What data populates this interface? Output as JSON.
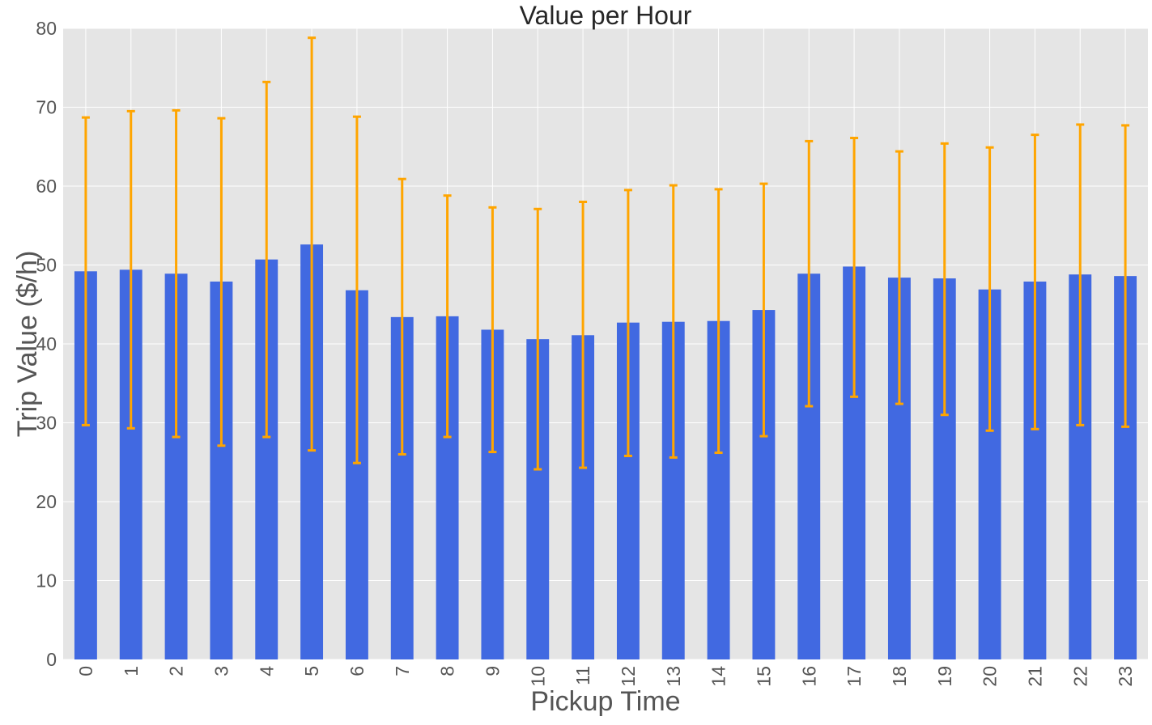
{
  "chart_data": {
    "type": "bar",
    "title": "Value per Hour",
    "xlabel": "Pickup Time",
    "ylabel": "Trip Value ($/h)",
    "ylim": [
      0,
      80
    ],
    "yticks": [
      0,
      10,
      20,
      30,
      40,
      50,
      60,
      70,
      80
    ],
    "grid": true,
    "categories": [
      "0",
      "1",
      "2",
      "3",
      "4",
      "5",
      "6",
      "7",
      "8",
      "9",
      "10",
      "11",
      "12",
      "13",
      "14",
      "15",
      "16",
      "17",
      "18",
      "19",
      "20",
      "21",
      "22",
      "23"
    ],
    "values": [
      49.2,
      49.4,
      48.9,
      47.9,
      50.7,
      52.6,
      46.8,
      43.4,
      43.5,
      41.8,
      40.6,
      41.1,
      42.7,
      42.8,
      42.9,
      44.3,
      48.9,
      49.8,
      48.4,
      48.3,
      46.9,
      47.9,
      48.8,
      48.6
    ],
    "error_bars": {
      "lower": [
        29.7,
        29.3,
        28.2,
        27.1,
        28.2,
        26.5,
        24.9,
        26.0,
        28.2,
        26.3,
        24.1,
        24.3,
        25.8,
        25.6,
        26.2,
        28.3,
        32.1,
        33.3,
        32.4,
        31.0,
        29.0,
        29.2,
        29.7,
        29.5
      ],
      "upper": [
        68.7,
        69.5,
        69.6,
        68.6,
        73.2,
        78.8,
        68.8,
        60.9,
        58.8,
        57.3,
        57.1,
        58.0,
        59.5,
        60.1,
        59.6,
        60.3,
        65.7,
        66.1,
        64.4,
        65.4,
        64.9,
        66.5,
        67.8,
        67.7
      ]
    },
    "colors": {
      "bar": "#4169e1",
      "error_bar": "#ffa500",
      "plot_background": "#e5e5e5",
      "grid": "#ffffff"
    }
  }
}
